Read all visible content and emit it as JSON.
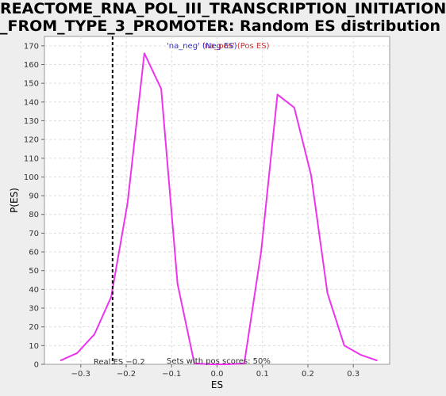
{
  "chart_data": {
    "type": "line",
    "title_lines": [
      "REACTOME_RNA_POL_III_TRANSCRIPTION_INITIATION",
      "_FROM_TYPE_3_PROMOTER: Random ES distribution"
    ],
    "xlabel": "ES",
    "ylabel": "P(ES)",
    "xlim": [
      -0.38,
      0.38
    ],
    "ylim": [
      0,
      175
    ],
    "xticks": [
      -0.3,
      -0.2,
      -0.1,
      0.0,
      0.1,
      0.2,
      0.3
    ],
    "xtick_labels": [
      "−0.3",
      "−0.2",
      "−0.1",
      "0.0",
      "0.1",
      "0.2",
      "0.3"
    ],
    "yticks": [
      0,
      10,
      20,
      30,
      40,
      50,
      60,
      70,
      80,
      90,
      100,
      110,
      120,
      130,
      140,
      150,
      160,
      170
    ],
    "grid": true,
    "legend": {
      "neg_label": "'na_neg' (Neg ES)",
      "pos_label": "'na_pos' (Pos ES)",
      "neg_color": "#3333cc",
      "pos_color": "#cc3333",
      "placement": "top-center"
    },
    "series": [
      {
        "color": "#ee33ee",
        "x": [
          -0.345,
          -0.308,
          -0.27,
          -0.233,
          -0.197,
          -0.16,
          -0.123,
          -0.087,
          -0.05,
          -0.013,
          0.023,
          0.06,
          0.097,
          0.133,
          0.17,
          0.207,
          0.243,
          0.28,
          0.317,
          0.353
        ],
        "y": [
          2,
          6,
          16,
          36,
          86,
          166,
          147,
          43,
          0.5,
          0,
          0,
          0.5,
          60,
          144,
          137,
          101,
          38,
          10,
          5,
          2
        ]
      }
    ],
    "real_es": {
      "value": -0.23,
      "label": "Real ES −0.2",
      "line_style": "dashed",
      "color": "#000000"
    },
    "annotation": "Sets with pos scores: 50%"
  }
}
